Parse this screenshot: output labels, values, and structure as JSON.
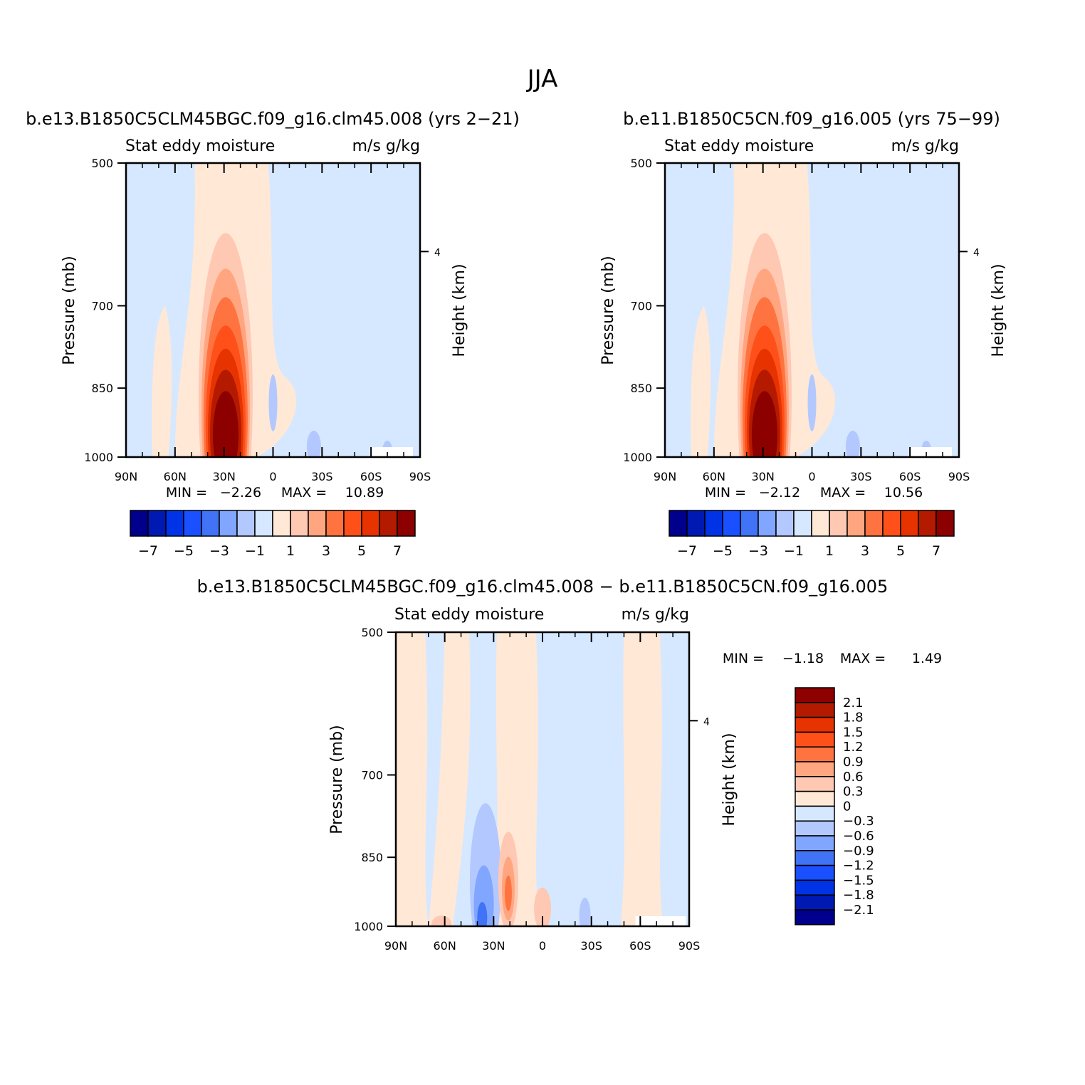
{
  "figure": {
    "title": "JJA",
    "diff_title": "b.e13.B1850C5CLM45BGC.f09_g16.clm45.008 − b.e11.B1850C5CN.f09_g16.005"
  },
  "colors": {
    "abs_scale": [
      "#00008c",
      "#0019b3",
      "#0033e6",
      "#1a50ff",
      "#4073f5",
      "#80a6ff",
      "#b3c8ff",
      "#d6e8ff",
      "#ffe8d6",
      "#ffc8b3",
      "#ffa680",
      "#ff7340",
      "#ff501a",
      "#e63300",
      "#b31a00",
      "#8c0000"
    ],
    "diff_scale": [
      "#00008c",
      "#0019b3",
      "#0033e6",
      "#1a50ff",
      "#4073f5",
      "#80a6ff",
      "#b3c8ff",
      "#d6e8ff",
      "#ffe8d6",
      "#ffc8b3",
      "#ffa680",
      "#ff7340",
      "#ff501a",
      "#e63300",
      "#b31a00",
      "#8c0000"
    ]
  },
  "chart_data": [
    {
      "type": "contour",
      "subtitle": "b.e13.B1850C5CLM45BGC.f09_g16.clm45.008 (yrs 2−21)",
      "left_label": "Stat eddy moisture",
      "right_label": "m/s g/kg",
      "ylabel": "Pressure (mb)",
      "ylabel_right": "Height (km)",
      "x_ticks": [
        "90N",
        "60N",
        "30N",
        "0",
        "30S",
        "60S",
        "90S"
      ],
      "y_ticks": [
        "500",
        "700",
        "850",
        "1000"
      ],
      "y_right_ticks": [
        "4"
      ],
      "ylim": [
        1000,
        500
      ],
      "xlim": [
        90,
        -90
      ],
      "min_label": "MIN =",
      "min_value": "−2.26",
      "max_label": "MAX =",
      "max_value": "10.89",
      "colorbar_labels": [
        "−7",
        "−5",
        "−3",
        "−1",
        "1",
        "3",
        "5",
        "7"
      ],
      "max_center": {
        "lat": 29,
        "p": 920
      }
    },
    {
      "type": "contour",
      "subtitle": "b.e11.B1850C5CN.f09_g16.005 (yrs 75−99)",
      "left_label": "Stat eddy moisture",
      "right_label": "m/s g/kg",
      "ylabel": "Pressure (mb)",
      "ylabel_right": "Height (km)",
      "x_ticks": [
        "90N",
        "60N",
        "30N",
        "0",
        "30S",
        "60S",
        "90S"
      ],
      "y_ticks": [
        "500",
        "700",
        "850",
        "1000"
      ],
      "y_right_ticks": [
        "4"
      ],
      "ylim": [
        1000,
        500
      ],
      "xlim": [
        90,
        -90
      ],
      "min_label": "MIN =",
      "min_value": "−2.12",
      "max_label": "MAX =",
      "max_value": "10.56",
      "colorbar_labels": [
        "−7",
        "−5",
        "−3",
        "−1",
        "1",
        "3",
        "5",
        "7"
      ],
      "max_center": {
        "lat": 29,
        "p": 920
      }
    },
    {
      "type": "contour",
      "left_label": "Stat eddy moisture",
      "right_label": "m/s g/kg",
      "ylabel": "Pressure (mb)",
      "ylabel_right": "Height (km)",
      "x_ticks": [
        "90N",
        "60N",
        "30N",
        "0",
        "30S",
        "60S",
        "90S"
      ],
      "y_ticks": [
        "500",
        "700",
        "850",
        "1000"
      ],
      "y_right_ticks": [
        "4"
      ],
      "ylim": [
        1000,
        500
      ],
      "xlim": [
        90,
        -90
      ],
      "min_label": "MIN =",
      "min_value": "−1.18",
      "max_label": "MAX =",
      "max_value": "1.49",
      "colorbar_labels": [
        "2.1",
        "1.8",
        "1.5",
        "1.2",
        "0.9",
        "0.6",
        "0.3",
        "0",
        "−0.3",
        "−0.6",
        "−0.9",
        "−1.2",
        "−1.5",
        "−1.8",
        "−2.1"
      ]
    }
  ]
}
